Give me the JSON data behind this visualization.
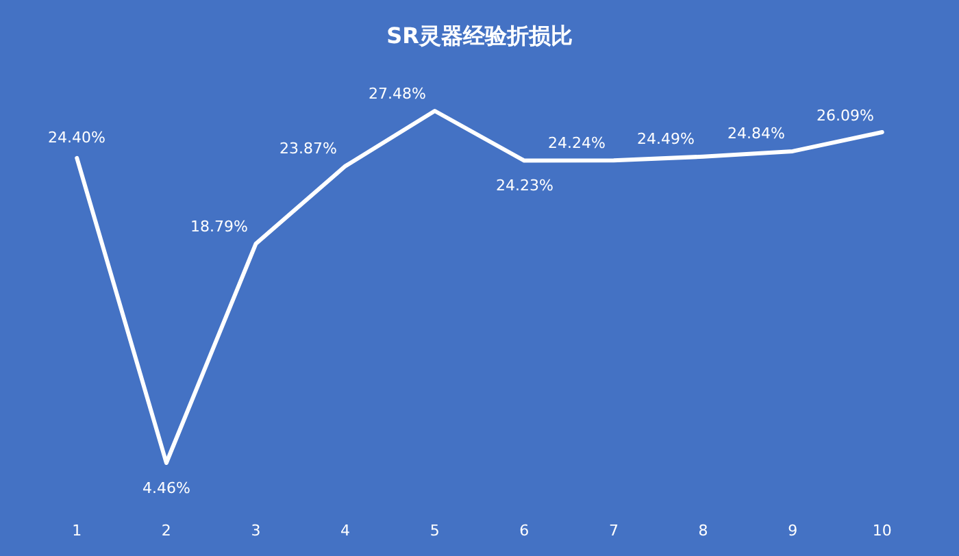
{
  "chart_data": {
    "type": "line",
    "title": "SR灵器经验折损比",
    "categories": [
      "1",
      "2",
      "3",
      "4",
      "5",
      "6",
      "7",
      "8",
      "9",
      "10"
    ],
    "series": [
      {
        "color": "#ffffff",
        "values": [
          24.4,
          4.46,
          18.79,
          23.87,
          27.48,
          24.23,
          24.24,
          24.49,
          24.84,
          26.09
        ],
        "value_labels": [
          "24.40%",
          "4.46%",
          "18.79%",
          "23.87%",
          "27.48%",
          "24.23%",
          "24.24%",
          "24.49%",
          "24.84%",
          "26.09%"
        ]
      }
    ],
    "tick_labels": "x",
    "grid": false,
    "legend": false,
    "marker": "none",
    "line_style": "solid"
  }
}
